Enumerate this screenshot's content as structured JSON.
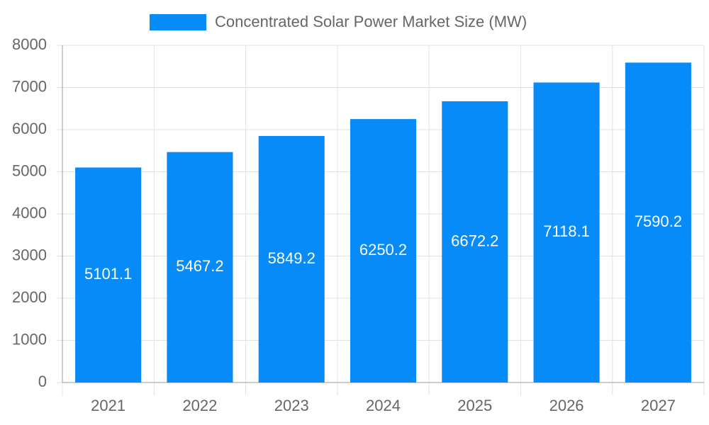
{
  "chart_data": {
    "type": "bar",
    "categories": [
      "2021",
      "2022",
      "2023",
      "2024",
      "2025",
      "2026",
      "2027"
    ],
    "series": [
      {
        "name": "Concentrated Solar Power Market Size (MW)",
        "color": "#068bf8",
        "values": [
          5101.1,
          5467.2,
          5849.2,
          6250.2,
          6672.2,
          7118.1,
          7590.2
        ]
      }
    ],
    "ylim": [
      0,
      8000
    ],
    "yticks": [
      0,
      1000,
      2000,
      3000,
      4000,
      5000,
      6000,
      7000,
      8000
    ],
    "grid": true,
    "legend": "top"
  }
}
